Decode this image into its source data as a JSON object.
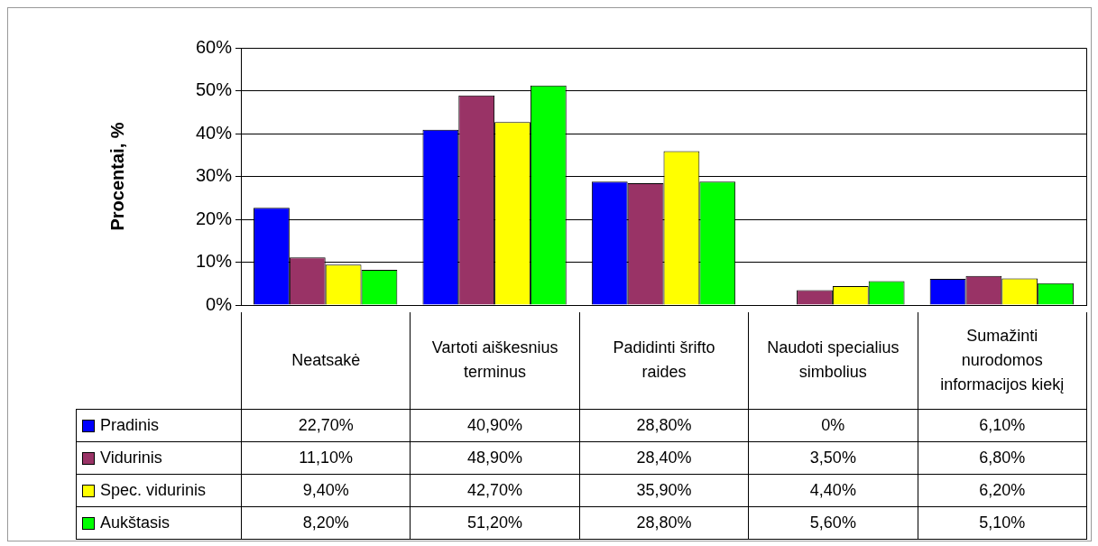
{
  "chart_data": {
    "type": "bar",
    "ylabel": "Procentai, %",
    "categories": [
      "Neatsakė",
      "Vartoti aiškesnius terminus",
      "Padidinti šrifto raides",
      "Naudoti specialius simbolius",
      "Sumažinti nurodomos informacijos kiekį"
    ],
    "series": [
      {
        "name": "Pradinis",
        "color": "#0000ff",
        "values": [
          22.7,
          40.9,
          28.8,
          0,
          6.1
        ],
        "value_labels": [
          "22,70%",
          "40,90%",
          "28,80%",
          "0%",
          "6,10%"
        ]
      },
      {
        "name": "Vidurinis",
        "color": "#993366",
        "values": [
          11.1,
          48.9,
          28.4,
          3.5,
          6.8
        ],
        "value_labels": [
          "11,10%",
          "48,90%",
          "28,40%",
          "3,50%",
          "6,80%"
        ]
      },
      {
        "name": "Spec. vidurinis",
        "color": "#ffff00",
        "values": [
          9.4,
          42.7,
          35.9,
          4.4,
          6.2
        ],
        "value_labels": [
          "9,40%",
          "42,70%",
          "35,90%",
          "4,40%",
          "6,20%"
        ]
      },
      {
        "name": "Aukštasis",
        "color": "#00ff00",
        "values": [
          8.2,
          51.2,
          28.8,
          5.6,
          5.1
        ],
        "value_labels": [
          "8,20%",
          "51,20%",
          "28,80%",
          "5,60%",
          "5,10%"
        ]
      }
    ],
    "ylim": [
      0,
      60
    ],
    "yticks": [
      {
        "value": 0,
        "label": "0%"
      },
      {
        "value": 10,
        "label": "10%"
      },
      {
        "value": 20,
        "label": "20%"
      },
      {
        "value": 30,
        "label": "30%"
      },
      {
        "value": 40,
        "label": "40%"
      },
      {
        "value": 50,
        "label": "50%"
      },
      {
        "value": 60,
        "label": "60%"
      }
    ],
    "grid": "y",
    "legend": "bottom left"
  }
}
